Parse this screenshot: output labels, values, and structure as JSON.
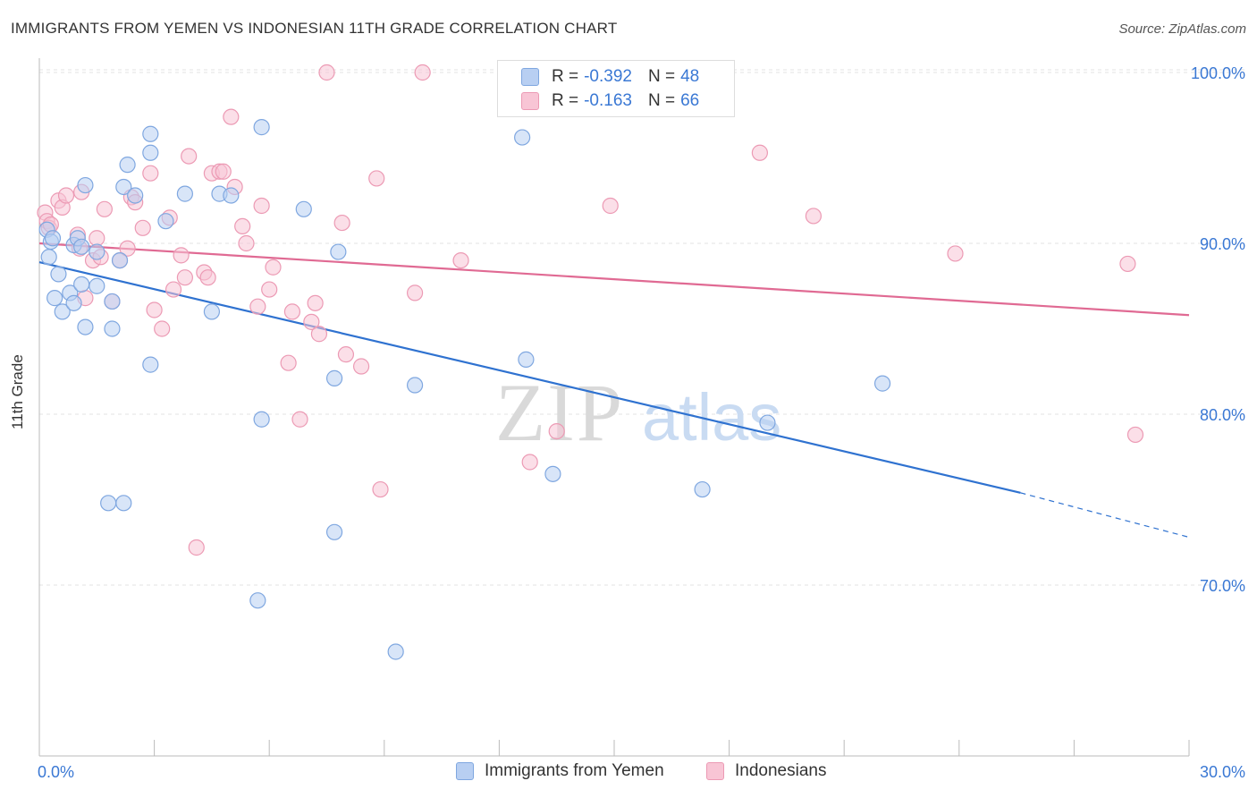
{
  "title": "IMMIGRANTS FROM YEMEN VS INDONESIAN 11TH GRADE CORRELATION CHART",
  "source": "Source: ZipAtlas.com",
  "watermark": {
    "zip": "ZIP",
    "atlas": "atlas"
  },
  "legend_top": {
    "rows": [
      {
        "r_label": "R =",
        "r_value": "-0.392",
        "n_label": "N =",
        "n_value": "48"
      },
      {
        "r_label": "R =",
        "r_value": "-0.163",
        "n_label": "N =",
        "n_value": "66"
      }
    ]
  },
  "legend_bottom": {
    "items": [
      "Immigrants from Yemen",
      "Indonesians"
    ]
  },
  "colors": {
    "blue_fill": "#b8cff2",
    "blue_stroke": "#7fa7e0",
    "blue_line": "#2f72d0",
    "pink_fill": "#f8c5d5",
    "pink_stroke": "#ec9ab4",
    "pink_line": "#e06a93",
    "tick_label": "#3a78d4",
    "grid": "#e3e3e3"
  },
  "chart_data": {
    "type": "scatter",
    "title": "IMMIGRANTS FROM YEMEN VS INDONESIAN 11TH GRADE CORRELATION CHART",
    "xlabel": "",
    "ylabel": "11th Grade",
    "xlim": [
      0,
      30
    ],
    "ylim": [
      60,
      102
    ],
    "x_tick_labels": [
      "0.0%",
      "30.0%"
    ],
    "y_ticks": [
      70,
      80,
      90,
      100
    ],
    "y_tick_labels": [
      "70.0%",
      "80.0%",
      "90.0%",
      "100.0%"
    ],
    "grid": true,
    "legend_position": "top-center",
    "series": [
      {
        "name": "Immigrants from Yemen",
        "R": -0.392,
        "N": 48,
        "trend": {
          "x0": 0,
          "y0": 88.9,
          "x1": 25.6,
          "y1": 75.4,
          "dash_to_x": 30,
          "dash_to_y": 72.8
        },
        "points": [
          [
            0.2,
            90.8
          ],
          [
            0.25,
            89.2
          ],
          [
            0.3,
            90.1
          ],
          [
            0.35,
            90.3
          ],
          [
            0.5,
            88.2
          ],
          [
            0.4,
            86.8
          ],
          [
            0.6,
            86.0
          ],
          [
            0.9,
            89.9
          ],
          [
            0.8,
            87.1
          ],
          [
            1.2,
            93.4
          ],
          [
            1.0,
            90.3
          ],
          [
            1.1,
            89.8
          ],
          [
            0.9,
            86.5
          ],
          [
            1.1,
            87.6
          ],
          [
            1.2,
            85.1
          ],
          [
            1.5,
            87.5
          ],
          [
            1.5,
            89.5
          ],
          [
            2.1,
            89.0
          ],
          [
            1.9,
            86.6
          ],
          [
            1.9,
            85.0
          ],
          [
            2.2,
            93.3
          ],
          [
            2.3,
            94.6
          ],
          [
            2.5,
            92.8
          ],
          [
            2.9,
            96.4
          ],
          [
            2.9,
            95.3
          ],
          [
            3.3,
            91.3
          ],
          [
            3.8,
            92.9
          ],
          [
            4.5,
            86.0
          ],
          [
            4.7,
            92.9
          ],
          [
            5.0,
            92.8
          ],
          [
            5.8,
            96.8
          ],
          [
            6.9,
            92.0
          ],
          [
            7.8,
            89.5
          ],
          [
            1.8,
            74.8
          ],
          [
            2.2,
            74.8
          ],
          [
            2.9,
            82.9
          ],
          [
            5.8,
            79.7
          ],
          [
            7.7,
            82.1
          ],
          [
            7.7,
            73.1
          ],
          [
            5.7,
            69.1
          ],
          [
            9.3,
            66.1
          ],
          [
            9.8,
            81.7
          ],
          [
            12.6,
            96.2
          ],
          [
            12.7,
            83.2
          ],
          [
            13.4,
            76.5
          ],
          [
            17.3,
            75.6
          ],
          [
            19.0,
            79.5
          ],
          [
            22.0,
            81.8
          ]
        ]
      },
      {
        "name": "Indonesians",
        "R": -0.163,
        "N": 66,
        "trend": {
          "x0": 0,
          "y0": 90.0,
          "x1": 30,
          "y1": 85.8
        },
        "points": [
          [
            0.15,
            91.8
          ],
          [
            0.2,
            91.3
          ],
          [
            0.25,
            90.9
          ],
          [
            0.3,
            91.1
          ],
          [
            0.5,
            92.5
          ],
          [
            0.6,
            92.1
          ],
          [
            0.7,
            92.8
          ],
          [
            1.0,
            90.5
          ],
          [
            1.05,
            89.7
          ],
          [
            1.1,
            93.0
          ],
          [
            1.2,
            86.8
          ],
          [
            1.4,
            89.0
          ],
          [
            1.5,
            90.3
          ],
          [
            1.6,
            89.2
          ],
          [
            1.7,
            92.0
          ],
          [
            1.9,
            86.6
          ],
          [
            2.1,
            89.0
          ],
          [
            2.3,
            89.7
          ],
          [
            2.4,
            92.7
          ],
          [
            2.5,
            92.4
          ],
          [
            2.7,
            90.9
          ],
          [
            2.9,
            94.1
          ],
          [
            3.0,
            86.1
          ],
          [
            3.2,
            85.0
          ],
          [
            3.4,
            91.5
          ],
          [
            3.5,
            87.3
          ],
          [
            3.7,
            89.3
          ],
          [
            3.8,
            88.0
          ],
          [
            3.9,
            95.1
          ],
          [
            4.1,
            72.2
          ],
          [
            4.3,
            88.3
          ],
          [
            4.4,
            88.0
          ],
          [
            4.5,
            94.1
          ],
          [
            4.7,
            94.2
          ],
          [
            4.8,
            94.2
          ],
          [
            5.0,
            97.4
          ],
          [
            5.1,
            93.3
          ],
          [
            5.3,
            91.0
          ],
          [
            5.4,
            90.0
          ],
          [
            5.7,
            86.3
          ],
          [
            5.8,
            92.2
          ],
          [
            6.0,
            87.3
          ],
          [
            6.1,
            88.6
          ],
          [
            6.5,
            83.0
          ],
          [
            6.6,
            86.0
          ],
          [
            6.8,
            79.7
          ],
          [
            7.1,
            85.4
          ],
          [
            7.2,
            86.5
          ],
          [
            7.3,
            84.7
          ],
          [
            7.5,
            100.0
          ],
          [
            7.9,
            91.2
          ],
          [
            8.0,
            83.5
          ],
          [
            8.4,
            82.8
          ],
          [
            8.8,
            93.8
          ],
          [
            8.9,
            75.6
          ],
          [
            9.8,
            87.1
          ],
          [
            10.0,
            100.0
          ],
          [
            11.0,
            89.0
          ],
          [
            12.8,
            77.2
          ],
          [
            13.5,
            79.0
          ],
          [
            14.9,
            92.2
          ],
          [
            18.8,
            95.3
          ],
          [
            20.2,
            91.6
          ],
          [
            23.9,
            89.4
          ],
          [
            28.4,
            88.8
          ],
          [
            28.6,
            78.8
          ]
        ]
      }
    ]
  }
}
